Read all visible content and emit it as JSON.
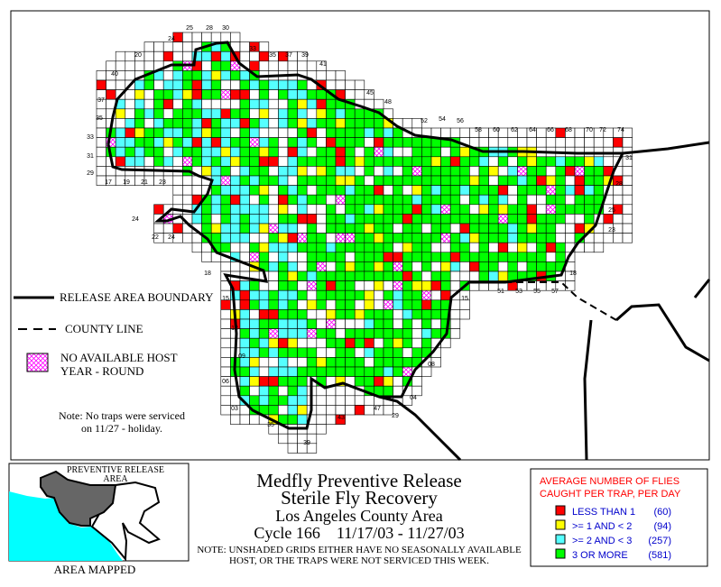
{
  "title": {
    "line1": "Medfly Preventive Release",
    "line2": "Sterile Fly Recovery",
    "line3": "Los Angeles County Area",
    "line4": "Cycle 166    11/17/03 - 11/27/03",
    "note1": "NOTE: UNSHADED GRIDS EITHER HAVE NO SEASONALLY AVAILABLE",
    "note2": "HOST, OR THE TRAPS WERE NOT SERVICED THIS WEEK."
  },
  "map_legend": {
    "boundary": "RELEASE AREA BOUNDARY",
    "county_line": "COUNTY LINE",
    "no_host_1": "NO AVAILABLE HOST",
    "no_host_2": "YEAR - ROUND",
    "note1": "Note: No traps were serviced",
    "note2": "on 11/27 - holiday."
  },
  "inset": {
    "label1": "PREVENTIVE RELEASE",
    "label2": "AREA",
    "caption": "AREA MAPPED",
    "colors": {
      "ocean": "#00ffff",
      "release_area": "#666666"
    }
  },
  "legend": {
    "heading1": "AVERAGE NUMBER OF FLIES",
    "heading2": "CAUGHT PER TRAP, PER DAY",
    "items": [
      {
        "label": "LESS THAN 1",
        "count": "(60)",
        "color": "#ff0000"
      },
      {
        "label": ">= 1 AND < 2",
        "count": "(94)",
        "color": "#ffff00"
      },
      {
        "label": ">= 2 AND < 3",
        "count": "(257)",
        "color": "#55ffff"
      },
      {
        "label": "3 OR MORE",
        "count": "(581)",
        "color": "#00ff00"
      }
    ]
  },
  "colors": {
    "heading": "#ff0000",
    "legend_text": "#0000cc",
    "hatch": "#ff00ff"
  },
  "grid_labels": [
    "24",
    "25",
    "28",
    "30",
    "20",
    "33",
    "35",
    "37",
    "39",
    "41",
    "45",
    "48",
    "40",
    "37",
    "35",
    "33",
    "31",
    "29",
    "17",
    "19",
    "21",
    "23",
    "52",
    "54",
    "56",
    "58",
    "60",
    "62",
    "64",
    "66",
    "68",
    "70",
    "72",
    "74",
    "31",
    "28",
    "25",
    "23",
    "18",
    "51",
    "53",
    "55",
    "57",
    "15",
    "24",
    "22",
    "24",
    "18",
    "15",
    "12",
    "09",
    "06",
    "03",
    "35",
    "39",
    "43",
    "47",
    "29",
    "04",
    "08"
  ]
}
